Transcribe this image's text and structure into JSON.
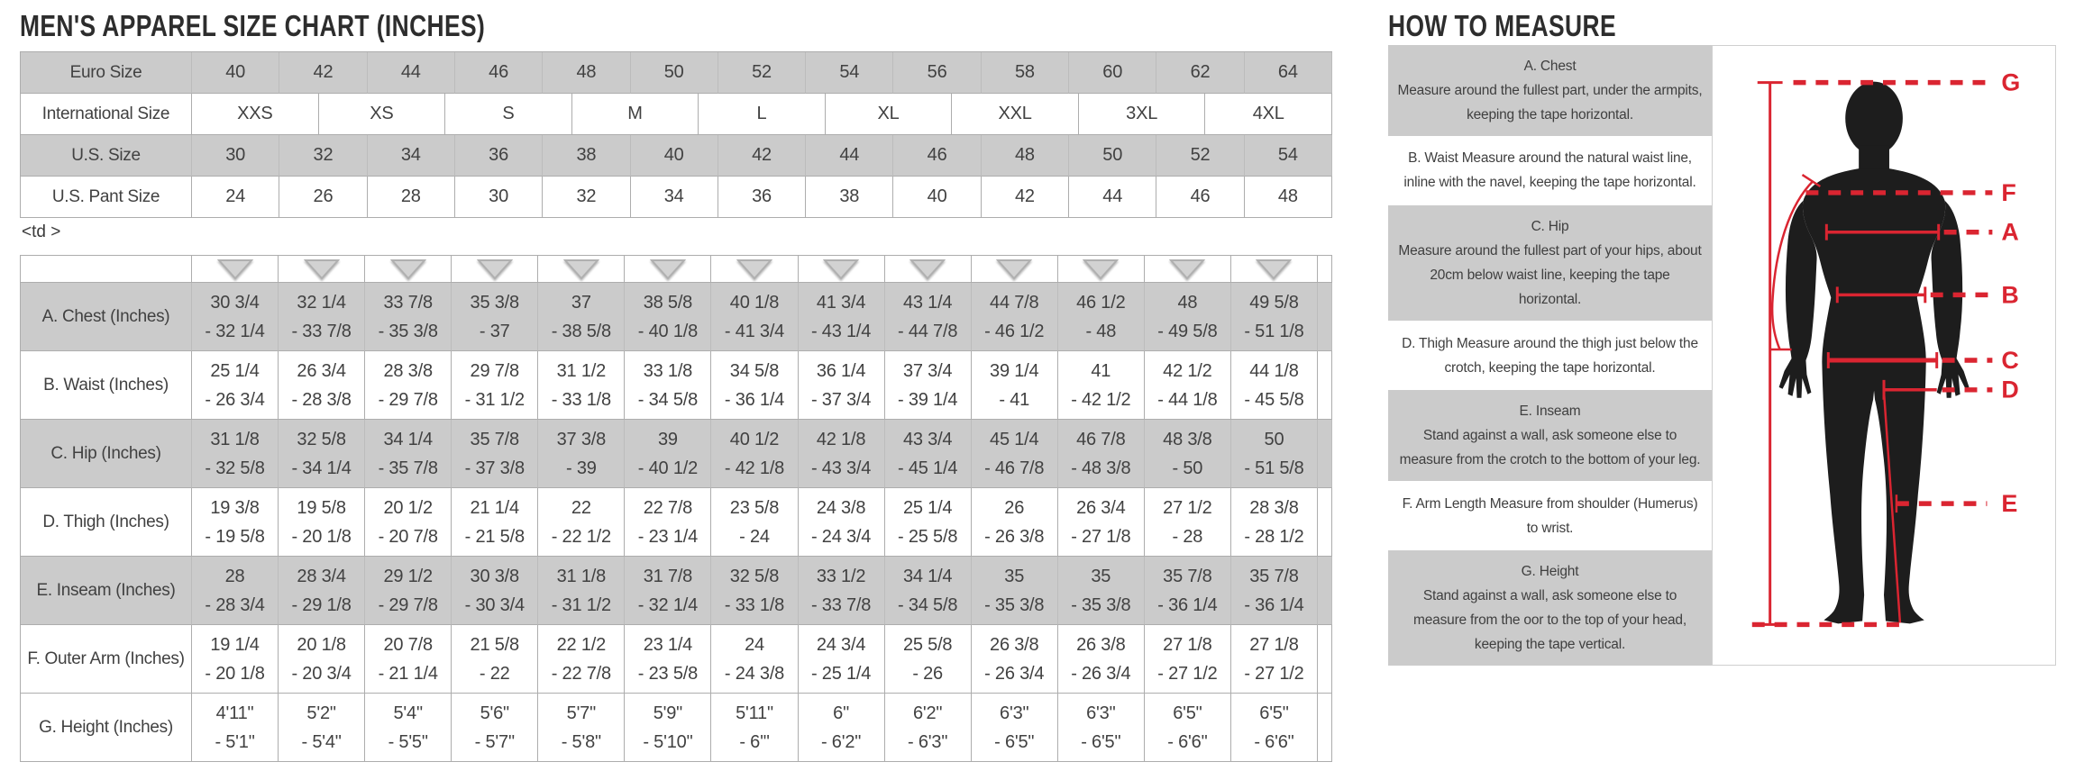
{
  "page_title": "MEN'S APPAREL SIZE CHART (INCHES)",
  "stray_markup": "<td >",
  "size_table": {
    "rows": [
      {
        "label": "Euro Size",
        "shaded": true,
        "values": [
          "40",
          "42",
          "44",
          "46",
          "48",
          "50",
          "52",
          "54",
          "56",
          "58",
          "60",
          "62",
          "64"
        ]
      },
      {
        "label": "International Size",
        "shaded": false,
        "values": [
          "XXS",
          "XS",
          "S",
          "M",
          "L",
          "XL",
          "XXL",
          "3XL",
          "4XL"
        ]
      },
      {
        "label": "U.S. Size",
        "shaded": true,
        "values": [
          "30",
          "32",
          "34",
          "36",
          "38",
          "40",
          "42",
          "44",
          "46",
          "48",
          "50",
          "52",
          "54"
        ]
      },
      {
        "label": "U.S. Pant Size",
        "shaded": false,
        "values": [
          "24",
          "26",
          "28",
          "30",
          "32",
          "34",
          "36",
          "38",
          "40",
          "42",
          "44",
          "46",
          "48"
        ]
      }
    ]
  },
  "measurement_table": {
    "rows": [
      {
        "label": "A. Chest (Inches)",
        "shaded": true,
        "values": [
          [
            "30 3/4",
            "- 32 1/4"
          ],
          [
            "32 1/4",
            "- 33 7/8"
          ],
          [
            "33 7/8",
            "- 35 3/8"
          ],
          [
            "35 3/8",
            "- 37"
          ],
          [
            "37",
            "- 38 5/8"
          ],
          [
            "38 5/8",
            "- 40 1/8"
          ],
          [
            "40 1/8",
            "- 41 3/4"
          ],
          [
            "41 3/4",
            "- 43 1/4"
          ],
          [
            "43 1/4",
            "- 44 7/8"
          ],
          [
            "44 7/8",
            "- 46 1/2"
          ],
          [
            "46 1/2",
            "- 48"
          ],
          [
            "48",
            "- 49 5/8"
          ],
          [
            "49 5/8",
            "- 51 1/8"
          ]
        ]
      },
      {
        "label": "B. Waist (Inches)",
        "shaded": false,
        "values": [
          [
            "25 1/4",
            "- 26 3/4"
          ],
          [
            "26 3/4",
            "- 28 3/8"
          ],
          [
            "28 3/8",
            "- 29 7/8"
          ],
          [
            "29 7/8",
            "- 31 1/2"
          ],
          [
            "31 1/2",
            "- 33 1/8"
          ],
          [
            "33 1/8",
            "- 34 5/8"
          ],
          [
            "34 5/8",
            "- 36 1/4"
          ],
          [
            "36 1/4",
            "- 37 3/4"
          ],
          [
            "37 3/4",
            "- 39 1/4"
          ],
          [
            "39 1/4",
            "- 41"
          ],
          [
            "41",
            "- 42 1/2"
          ],
          [
            "42 1/2",
            "- 44 1/8"
          ],
          [
            "44 1/8",
            "- 45 5/8"
          ]
        ]
      },
      {
        "label": "C. Hip (Inches)",
        "shaded": true,
        "values": [
          [
            "31 1/8",
            "- 32 5/8"
          ],
          [
            "32 5/8",
            "- 34 1/4"
          ],
          [
            "34 1/4",
            "- 35 7/8"
          ],
          [
            "35 7/8",
            "- 37 3/8"
          ],
          [
            "37 3/8",
            "- 39"
          ],
          [
            "39",
            "- 40 1/2"
          ],
          [
            "40 1/2",
            "- 42 1/8"
          ],
          [
            "42 1/8",
            "- 43 3/4"
          ],
          [
            "43 3/4",
            "- 45 1/4"
          ],
          [
            "45 1/4",
            "- 46 7/8"
          ],
          [
            "46 7/8",
            "- 48 3/8"
          ],
          [
            "48 3/8",
            "- 50"
          ],
          [
            "50",
            "- 51 5/8"
          ]
        ]
      },
      {
        "label": "D. Thigh (Inches)",
        "shaded": false,
        "values": [
          [
            "19 3/8",
            "- 19 5/8"
          ],
          [
            "19 5/8",
            "- 20 1/8"
          ],
          [
            "20 1/2",
            "- 20 7/8"
          ],
          [
            "21 1/4",
            "- 21 5/8"
          ],
          [
            "22",
            "- 22 1/2"
          ],
          [
            "22 7/8",
            "- 23 1/4"
          ],
          [
            "23 5/8",
            "- 24"
          ],
          [
            "24 3/8",
            "- 24 3/4"
          ],
          [
            "25 1/4",
            "- 25 5/8"
          ],
          [
            "26",
            "- 26 3/8"
          ],
          [
            "26 3/4",
            "- 27 1/8"
          ],
          [
            "27 1/2",
            "- 28"
          ],
          [
            "28 3/8",
            "- 28 1/2"
          ]
        ]
      },
      {
        "label": "E. Inseam (Inches)",
        "shaded": true,
        "values": [
          [
            "28",
            "- 28 3/4"
          ],
          [
            "28 3/4",
            "- 29 1/8"
          ],
          [
            "29 1/2",
            "- 29 7/8"
          ],
          [
            "30 3/8",
            "- 30 3/4"
          ],
          [
            "31 1/8",
            "- 31 1/2"
          ],
          [
            "31 7/8",
            "- 32 1/4"
          ],
          [
            "32 5/8",
            "- 33 1/8"
          ],
          [
            "33 1/2",
            "- 33 7/8"
          ],
          [
            "34 1/4",
            "- 34 5/8"
          ],
          [
            "35",
            "- 35 3/8"
          ],
          [
            "35",
            "- 35 3/8"
          ],
          [
            "35 7/8",
            "- 36 1/4"
          ],
          [
            "35 7/8",
            "- 36 1/4"
          ]
        ]
      },
      {
        "label": "F. Outer Arm (Inches)",
        "shaded": false,
        "values": [
          [
            "19 1/4",
            "- 20 1/8"
          ],
          [
            "20 1/8",
            "- 20 3/4"
          ],
          [
            "20 7/8",
            "- 21 1/4"
          ],
          [
            "21 5/8",
            "- 22"
          ],
          [
            "22 1/2",
            "- 22 7/8"
          ],
          [
            "23 1/4",
            "- 23 5/8"
          ],
          [
            "24",
            "- 24 3/8"
          ],
          [
            "24 3/4",
            "- 25 1/4"
          ],
          [
            "25 5/8",
            "- 26"
          ],
          [
            "26 3/8",
            "- 26 3/4"
          ],
          [
            "26 3/8",
            "- 26 3/4"
          ],
          [
            "27 1/8",
            "- 27 1/2"
          ],
          [
            "27 1/8",
            "- 27 1/2"
          ]
        ]
      },
      {
        "label": "G. Height (Inches)",
        "shaded": false,
        "values": [
          [
            "4'11\"",
            "- 5'1\""
          ],
          [
            "5'2\"",
            "- 5'4\""
          ],
          [
            "5'4\"",
            "- 5'5\""
          ],
          [
            "5'6\"",
            "- 5'7\""
          ],
          [
            "5'7\"",
            "- 5'8\""
          ],
          [
            "5'9\"",
            "- 5'10\""
          ],
          [
            "5'11\"",
            "- 6'\""
          ],
          [
            "6\"",
            "- 6'2\""
          ],
          [
            "6'2\"",
            "- 6'3\""
          ],
          [
            "6'3\"",
            "- 6'5\""
          ],
          [
            "6'3\"",
            "- 6'5\""
          ],
          [
            "6'5\"",
            "- 6'6\""
          ],
          [
            "6'5\"",
            "- 6'6\""
          ]
        ]
      }
    ]
  },
  "how_to_measure": {
    "title": "HOW TO MEASURE",
    "sections": [
      {
        "heading": "A. Chest",
        "shaded": true,
        "body": "Measure around the fullest part, under the armpits, keeping the tape horizontal."
      },
      {
        "heading": "",
        "shaded": false,
        "body": "B. Waist Measure around the natural waist line, inline with the navel, keeping the tape horizontal."
      },
      {
        "heading": "C. Hip",
        "shaded": true,
        "body": "Measure around the fullest part of your hips, about 20cm below waist line, keeping the tape horizontal."
      },
      {
        "heading": "",
        "shaded": false,
        "body": "D. Thigh Measure around the thigh just below the crotch, keeping the tape horizontal."
      },
      {
        "heading": "E. Inseam",
        "shaded": true,
        "body": "Stand against a wall, ask someone else to measure from the crotch to the bottom of your leg."
      },
      {
        "heading": "",
        "shaded": false,
        "body": "F. Arm Length Measure from shoulder (Humerus) to wrist."
      },
      {
        "heading": "G. Height",
        "shaded": true,
        "body": "Stand against a wall, ask someone else to measure from the oor to the top of your head, keeping the tape vertical."
      }
    ],
    "diagram_labels": [
      "G",
      "F",
      "A",
      "B",
      "C",
      "D",
      "E"
    ]
  },
  "colors": {
    "shaded_cell": "#cbcbcb",
    "accent_red": "#da2531",
    "silhouette_black": "#1d1d1d",
    "table_border": "#adadad",
    "text": "#414141"
  }
}
